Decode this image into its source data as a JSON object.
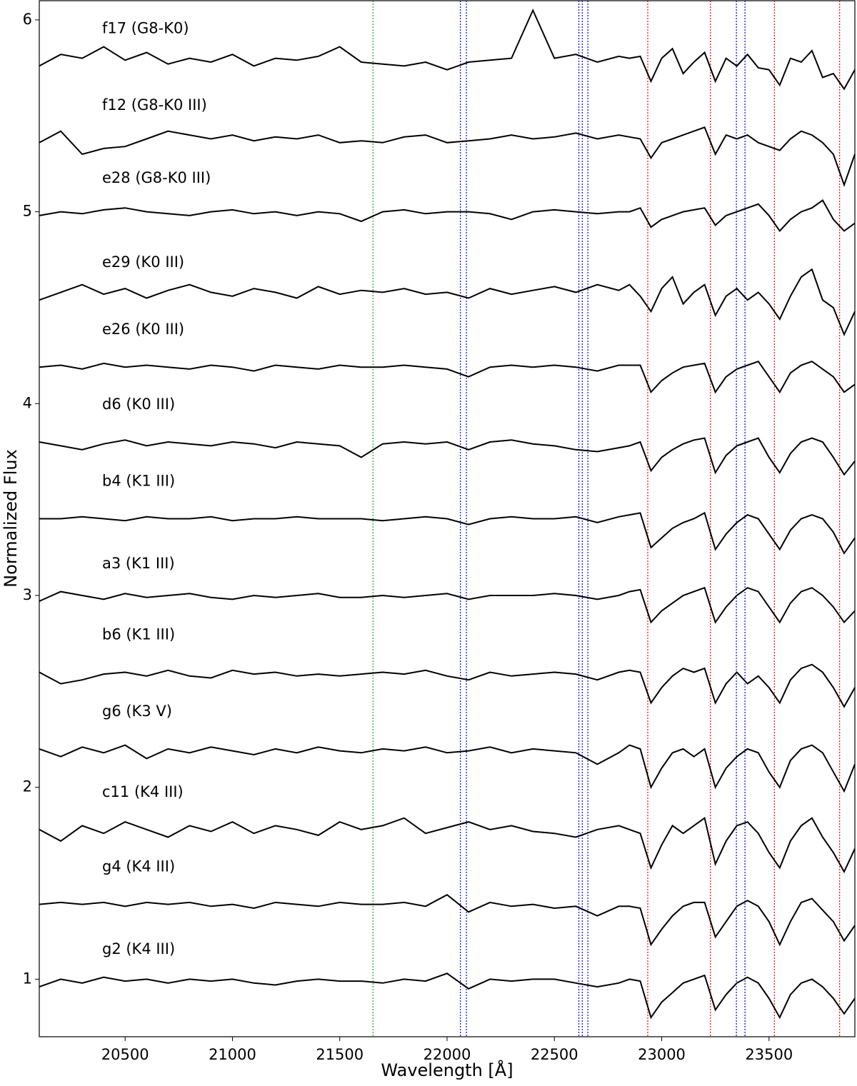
{
  "chart_data": {
    "type": "line",
    "xlabel": "Wavelength [Å]",
    "ylabel": "Normalized Flux",
    "xlim": [
      20100,
      23900
    ],
    "ylim": [
      0.7,
      6.1
    ],
    "xticks": [
      20500,
      21000,
      21500,
      22000,
      22500,
      23000,
      23500
    ],
    "yticks": [
      1,
      2,
      3,
      4,
      5,
      6
    ],
    "x": [
      20100,
      20200,
      20300,
      20400,
      20500,
      20600,
      20700,
      20800,
      20900,
      21000,
      21100,
      21200,
      21300,
      21400,
      21500,
      21600,
      21700,
      21800,
      21900,
      22000,
      22100,
      22200,
      22300,
      22400,
      22500,
      22600,
      22700,
      22800,
      22850,
      22900,
      22950,
      23000,
      23050,
      23100,
      23150,
      23200,
      23250,
      23300,
      23350,
      23400,
      23450,
      23500,
      23550,
      23600,
      23650,
      23700,
      23750,
      23800,
      23850,
      23900
    ],
    "vlines": [
      {
        "x": 21655,
        "color": "#2ca02c"
      },
      {
        "x": 22062,
        "color": "#0000ff"
      },
      {
        "x": 22090,
        "color": "#0000ff"
      },
      {
        "x": 22614,
        "color": "#0000ff"
      },
      {
        "x": 22630,
        "color": "#0000ff"
      },
      {
        "x": 22656,
        "color": "#0000ff"
      },
      {
        "x": 23348,
        "color": "#0000ff"
      },
      {
        "x": 23388,
        "color": "#0000ff"
      },
      {
        "x": 22935,
        "color": "#ff0000"
      },
      {
        "x": 23227,
        "color": "#ff0000"
      },
      {
        "x": 23525,
        "color": "#ff0000"
      },
      {
        "x": 23829,
        "color": "#ff0000"
      }
    ],
    "series": [
      {
        "name": "f17 (G8-K0)",
        "color": "#000000",
        "values": [
          5.76,
          5.82,
          5.8,
          5.86,
          5.79,
          5.83,
          5.77,
          5.8,
          5.78,
          5.82,
          5.76,
          5.8,
          5.79,
          5.81,
          5.86,
          5.78,
          5.77,
          5.76,
          5.78,
          5.74,
          5.78,
          5.79,
          5.8,
          6.05,
          5.8,
          5.82,
          5.78,
          5.81,
          5.8,
          5.81,
          5.68,
          5.8,
          5.85,
          5.72,
          5.78,
          5.83,
          5.68,
          5.8,
          5.76,
          5.82,
          5.75,
          5.74,
          5.66,
          5.8,
          5.78,
          5.84,
          5.7,
          5.72,
          5.64,
          5.74
        ]
      },
      {
        "name": "f12 (G8-K0 III)",
        "color": "#000000",
        "values": [
          5.36,
          5.42,
          5.3,
          5.33,
          5.34,
          5.38,
          5.42,
          5.4,
          5.38,
          5.4,
          5.37,
          5.39,
          5.38,
          5.4,
          5.36,
          5.37,
          5.36,
          5.39,
          5.4,
          5.36,
          5.37,
          5.38,
          5.4,
          5.38,
          5.39,
          5.41,
          5.38,
          5.4,
          5.39,
          5.38,
          5.28,
          5.36,
          5.38,
          5.4,
          5.42,
          5.44,
          5.3,
          5.4,
          5.38,
          5.4,
          5.36,
          5.34,
          5.32,
          5.38,
          5.42,
          5.4,
          5.36,
          5.3,
          5.14,
          5.3
        ]
      },
      {
        "name": "e28 (G8-K0 III)",
        "color": "#000000",
        "values": [
          4.98,
          5.0,
          4.99,
          5.01,
          5.02,
          5.0,
          4.99,
          4.98,
          5.0,
          5.01,
          4.99,
          5.0,
          4.98,
          5.0,
          4.99,
          4.95,
          5.0,
          5.01,
          4.99,
          5.0,
          5.0,
          4.99,
          4.96,
          5.0,
          5.01,
          5.0,
          4.99,
          5.0,
          5.0,
          5.02,
          4.92,
          4.96,
          4.98,
          5.0,
          5.01,
          5.02,
          4.93,
          4.98,
          5.0,
          5.02,
          5.04,
          4.98,
          4.9,
          4.96,
          5.0,
          5.02,
          5.06,
          4.96,
          4.9,
          4.94
        ]
      },
      {
        "name": "e29 (K0 III)",
        "color": "#000000",
        "values": [
          4.54,
          4.58,
          4.62,
          4.57,
          4.6,
          4.55,
          4.59,
          4.62,
          4.58,
          4.56,
          4.6,
          4.58,
          4.55,
          4.61,
          4.57,
          4.59,
          4.58,
          4.6,
          4.57,
          4.58,
          4.55,
          4.6,
          4.57,
          4.59,
          4.61,
          4.58,
          4.62,
          4.59,
          4.62,
          4.56,
          4.48,
          4.6,
          4.66,
          4.52,
          4.58,
          4.62,
          4.46,
          4.56,
          4.6,
          4.54,
          4.58,
          4.52,
          4.44,
          4.56,
          4.66,
          4.7,
          4.54,
          4.5,
          4.36,
          4.48
        ]
      },
      {
        "name": "e26 (K0 III)",
        "color": "#000000",
        "values": [
          4.19,
          4.2,
          4.18,
          4.21,
          4.19,
          4.2,
          4.19,
          4.18,
          4.2,
          4.19,
          4.17,
          4.2,
          4.19,
          4.18,
          4.2,
          4.19,
          4.19,
          4.2,
          4.19,
          4.18,
          4.14,
          4.19,
          4.2,
          4.19,
          4.2,
          4.19,
          4.17,
          4.2,
          4.2,
          4.2,
          4.06,
          4.12,
          4.16,
          4.19,
          4.2,
          4.21,
          4.06,
          4.14,
          4.18,
          4.2,
          4.22,
          4.14,
          4.06,
          4.16,
          4.2,
          4.22,
          4.18,
          4.14,
          4.06,
          4.1
        ]
      },
      {
        "name": "d6 (K0 III)",
        "color": "#000000",
        "values": [
          3.8,
          3.78,
          3.76,
          3.79,
          3.81,
          3.78,
          3.8,
          3.79,
          3.78,
          3.8,
          3.79,
          3.77,
          3.8,
          3.79,
          3.78,
          3.72,
          3.79,
          3.8,
          3.79,
          3.8,
          3.76,
          3.8,
          3.81,
          3.79,
          3.78,
          3.76,
          3.75,
          3.77,
          3.78,
          3.8,
          3.65,
          3.72,
          3.76,
          3.79,
          3.81,
          3.82,
          3.64,
          3.73,
          3.78,
          3.8,
          3.82,
          3.72,
          3.64,
          3.74,
          3.8,
          3.82,
          3.8,
          3.72,
          3.63,
          3.7
        ]
      },
      {
        "name": "b4 (K1 III)",
        "color": "#000000",
        "values": [
          3.4,
          3.4,
          3.41,
          3.4,
          3.39,
          3.41,
          3.4,
          3.4,
          3.41,
          3.39,
          3.4,
          3.4,
          3.41,
          3.4,
          3.4,
          3.4,
          3.39,
          3.4,
          3.41,
          3.4,
          3.37,
          3.4,
          3.41,
          3.4,
          3.4,
          3.41,
          3.38,
          3.41,
          3.42,
          3.43,
          3.25,
          3.3,
          3.35,
          3.38,
          3.4,
          3.43,
          3.24,
          3.32,
          3.38,
          3.42,
          3.4,
          3.32,
          3.24,
          3.34,
          3.4,
          3.42,
          3.4,
          3.33,
          3.22,
          3.3
        ]
      },
      {
        "name": "a3 (K1 III)",
        "color": "#000000",
        "values": [
          2.97,
          3.02,
          3.0,
          2.98,
          3.01,
          2.99,
          3.0,
          3.01,
          2.99,
          2.98,
          3.0,
          2.99,
          3.0,
          3.01,
          2.99,
          2.99,
          3.0,
          2.99,
          3.0,
          3.01,
          2.98,
          3.0,
          3.0,
          3.0,
          3.01,
          3.0,
          2.98,
          3.0,
          3.02,
          3.03,
          2.86,
          2.92,
          2.96,
          3.0,
          3.02,
          3.04,
          2.86,
          2.94,
          3.0,
          3.04,
          3.02,
          2.94,
          2.86,
          2.96,
          3.02,
          3.04,
          3.0,
          2.94,
          2.86,
          2.92
        ]
      },
      {
        "name": "b6 (K1 III)",
        "color": "#000000",
        "values": [
          2.6,
          2.54,
          2.56,
          2.59,
          2.6,
          2.58,
          2.61,
          2.58,
          2.57,
          2.61,
          2.59,
          2.6,
          2.58,
          2.59,
          2.58,
          2.59,
          2.6,
          2.59,
          2.61,
          2.58,
          2.56,
          2.6,
          2.58,
          2.59,
          2.6,
          2.59,
          2.56,
          2.6,
          2.61,
          2.6,
          2.44,
          2.52,
          2.58,
          2.62,
          2.6,
          2.62,
          2.44,
          2.54,
          2.6,
          2.54,
          2.58,
          2.52,
          2.44,
          2.56,
          2.62,
          2.64,
          2.6,
          2.52,
          2.42,
          2.52
        ]
      },
      {
        "name": "g6 (K3 V)",
        "color": "#000000",
        "values": [
          2.2,
          2.16,
          2.21,
          2.18,
          2.22,
          2.15,
          2.2,
          2.18,
          2.21,
          2.19,
          2.17,
          2.2,
          2.18,
          2.21,
          2.19,
          2.18,
          2.2,
          2.19,
          2.21,
          2.18,
          2.19,
          2.21,
          2.18,
          2.2,
          2.19,
          2.18,
          2.12,
          2.18,
          2.22,
          2.2,
          2.0,
          2.1,
          2.18,
          2.2,
          2.16,
          2.2,
          2.0,
          2.1,
          2.16,
          2.2,
          2.18,
          2.08,
          2.0,
          2.14,
          2.2,
          2.22,
          2.18,
          2.08,
          1.98,
          2.12
        ]
      },
      {
        "name": "c11 (K4 III)",
        "color": "#000000",
        "values": [
          1.78,
          1.72,
          1.8,
          1.76,
          1.82,
          1.78,
          1.74,
          1.8,
          1.77,
          1.82,
          1.76,
          1.8,
          1.78,
          1.75,
          1.82,
          1.78,
          1.8,
          1.84,
          1.76,
          1.79,
          1.82,
          1.78,
          1.8,
          1.77,
          1.76,
          1.74,
          1.78,
          1.8,
          1.78,
          1.76,
          1.58,
          1.7,
          1.8,
          1.76,
          1.8,
          1.84,
          1.6,
          1.72,
          1.8,
          1.82,
          1.76,
          1.66,
          1.58,
          1.72,
          1.8,
          1.84,
          1.74,
          1.66,
          1.56,
          1.68
        ]
      },
      {
        "name": "g4 (K4 III)",
        "color": "#000000",
        "values": [
          1.39,
          1.4,
          1.39,
          1.4,
          1.38,
          1.4,
          1.39,
          1.4,
          1.38,
          1.39,
          1.37,
          1.4,
          1.39,
          1.38,
          1.4,
          1.39,
          1.39,
          1.4,
          1.38,
          1.44,
          1.35,
          1.4,
          1.38,
          1.39,
          1.37,
          1.38,
          1.33,
          1.38,
          1.38,
          1.37,
          1.18,
          1.26,
          1.33,
          1.38,
          1.4,
          1.4,
          1.22,
          1.3,
          1.38,
          1.41,
          1.38,
          1.3,
          1.18,
          1.3,
          1.4,
          1.42,
          1.36,
          1.3,
          1.2,
          1.28
        ]
      },
      {
        "name": "g2 (K4 III)",
        "color": "#000000",
        "values": [
          0.96,
          1.0,
          0.98,
          1.01,
          0.99,
          1.0,
          0.98,
          1.0,
          0.99,
          1.0,
          0.98,
          0.97,
          0.99,
          1.0,
          0.99,
          0.99,
          0.98,
          1.0,
          0.99,
          1.03,
          0.95,
          1.0,
          0.99,
          1.0,
          1.0,
          0.98,
          0.96,
          0.98,
          1.0,
          0.99,
          0.8,
          0.88,
          0.93,
          0.98,
          1.0,
          1.02,
          0.84,
          0.92,
          0.98,
          1.01,
          0.98,
          0.9,
          0.8,
          0.92,
          0.98,
          1.0,
          0.96,
          0.9,
          0.82,
          0.9
        ]
      }
    ]
  }
}
